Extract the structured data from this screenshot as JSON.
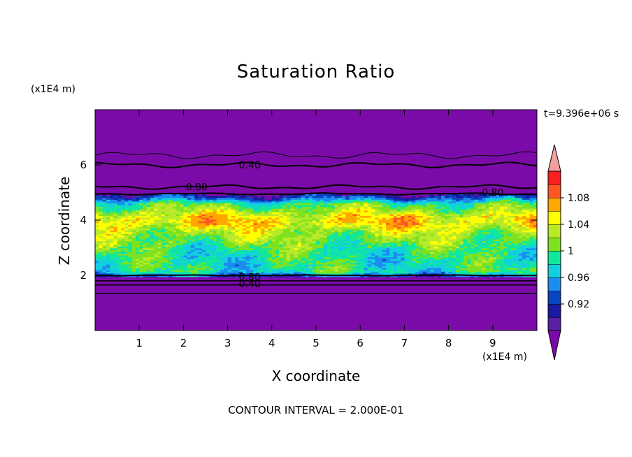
{
  "chart_data": {
    "type": "heatmap",
    "title": "Saturation Ratio",
    "xlabel": "X coordinate",
    "ylabel": "Z coordinate",
    "x_unit": "(x1E4 m)",
    "y_unit": "(x1E4 m)",
    "time_label": "t=9.396e+06 s",
    "footer": "CONTOUR INTERVAL = 2.000E-01",
    "xlim": [
      0,
      10
    ],
    "ylim": [
      0,
      8
    ],
    "x_ticks": [
      1,
      2,
      3,
      4,
      5,
      6,
      7,
      8,
      9
    ],
    "y_ticks": [
      2,
      4,
      6
    ],
    "colorbar": {
      "levels": [
        0.9,
        0.92,
        0.94,
        0.96,
        0.98,
        1.0,
        1.02,
        1.04,
        1.06,
        1.08,
        1.1
      ],
      "tick_labels": [
        "0.92",
        "0.96",
        "1",
        "1.04",
        "1.08"
      ],
      "tick_values": [
        0.92,
        0.96,
        1.0,
        1.04,
        1.08
      ],
      "colors": [
        "#5b1fa3",
        "#1a1aa0",
        "#0a45c0",
        "#1b8cf0",
        "#12cfe0",
        "#10e89a",
        "#7ee21f",
        "#b9ea2a",
        "#ffff00",
        "#ffa800",
        "#ff5722",
        "#ff1f1f"
      ],
      "under_color": "#7b0ba8",
      "over_color": "#f4a0a0"
    },
    "background_value_color": "#7b0ba8",
    "contour_labels": [
      {
        "text": "0.40",
        "x": 3.5,
        "z": 6.0
      },
      {
        "text": "0.80",
        "x": 2.3,
        "z": 5.2
      },
      {
        "text": "0.80",
        "x": 9.0,
        "z": 5.0
      },
      {
        "text": "0.80",
        "x": 3.5,
        "z": 1.95
      },
      {
        "text": "0.40",
        "x": 3.5,
        "z": 1.7
      }
    ]
  }
}
